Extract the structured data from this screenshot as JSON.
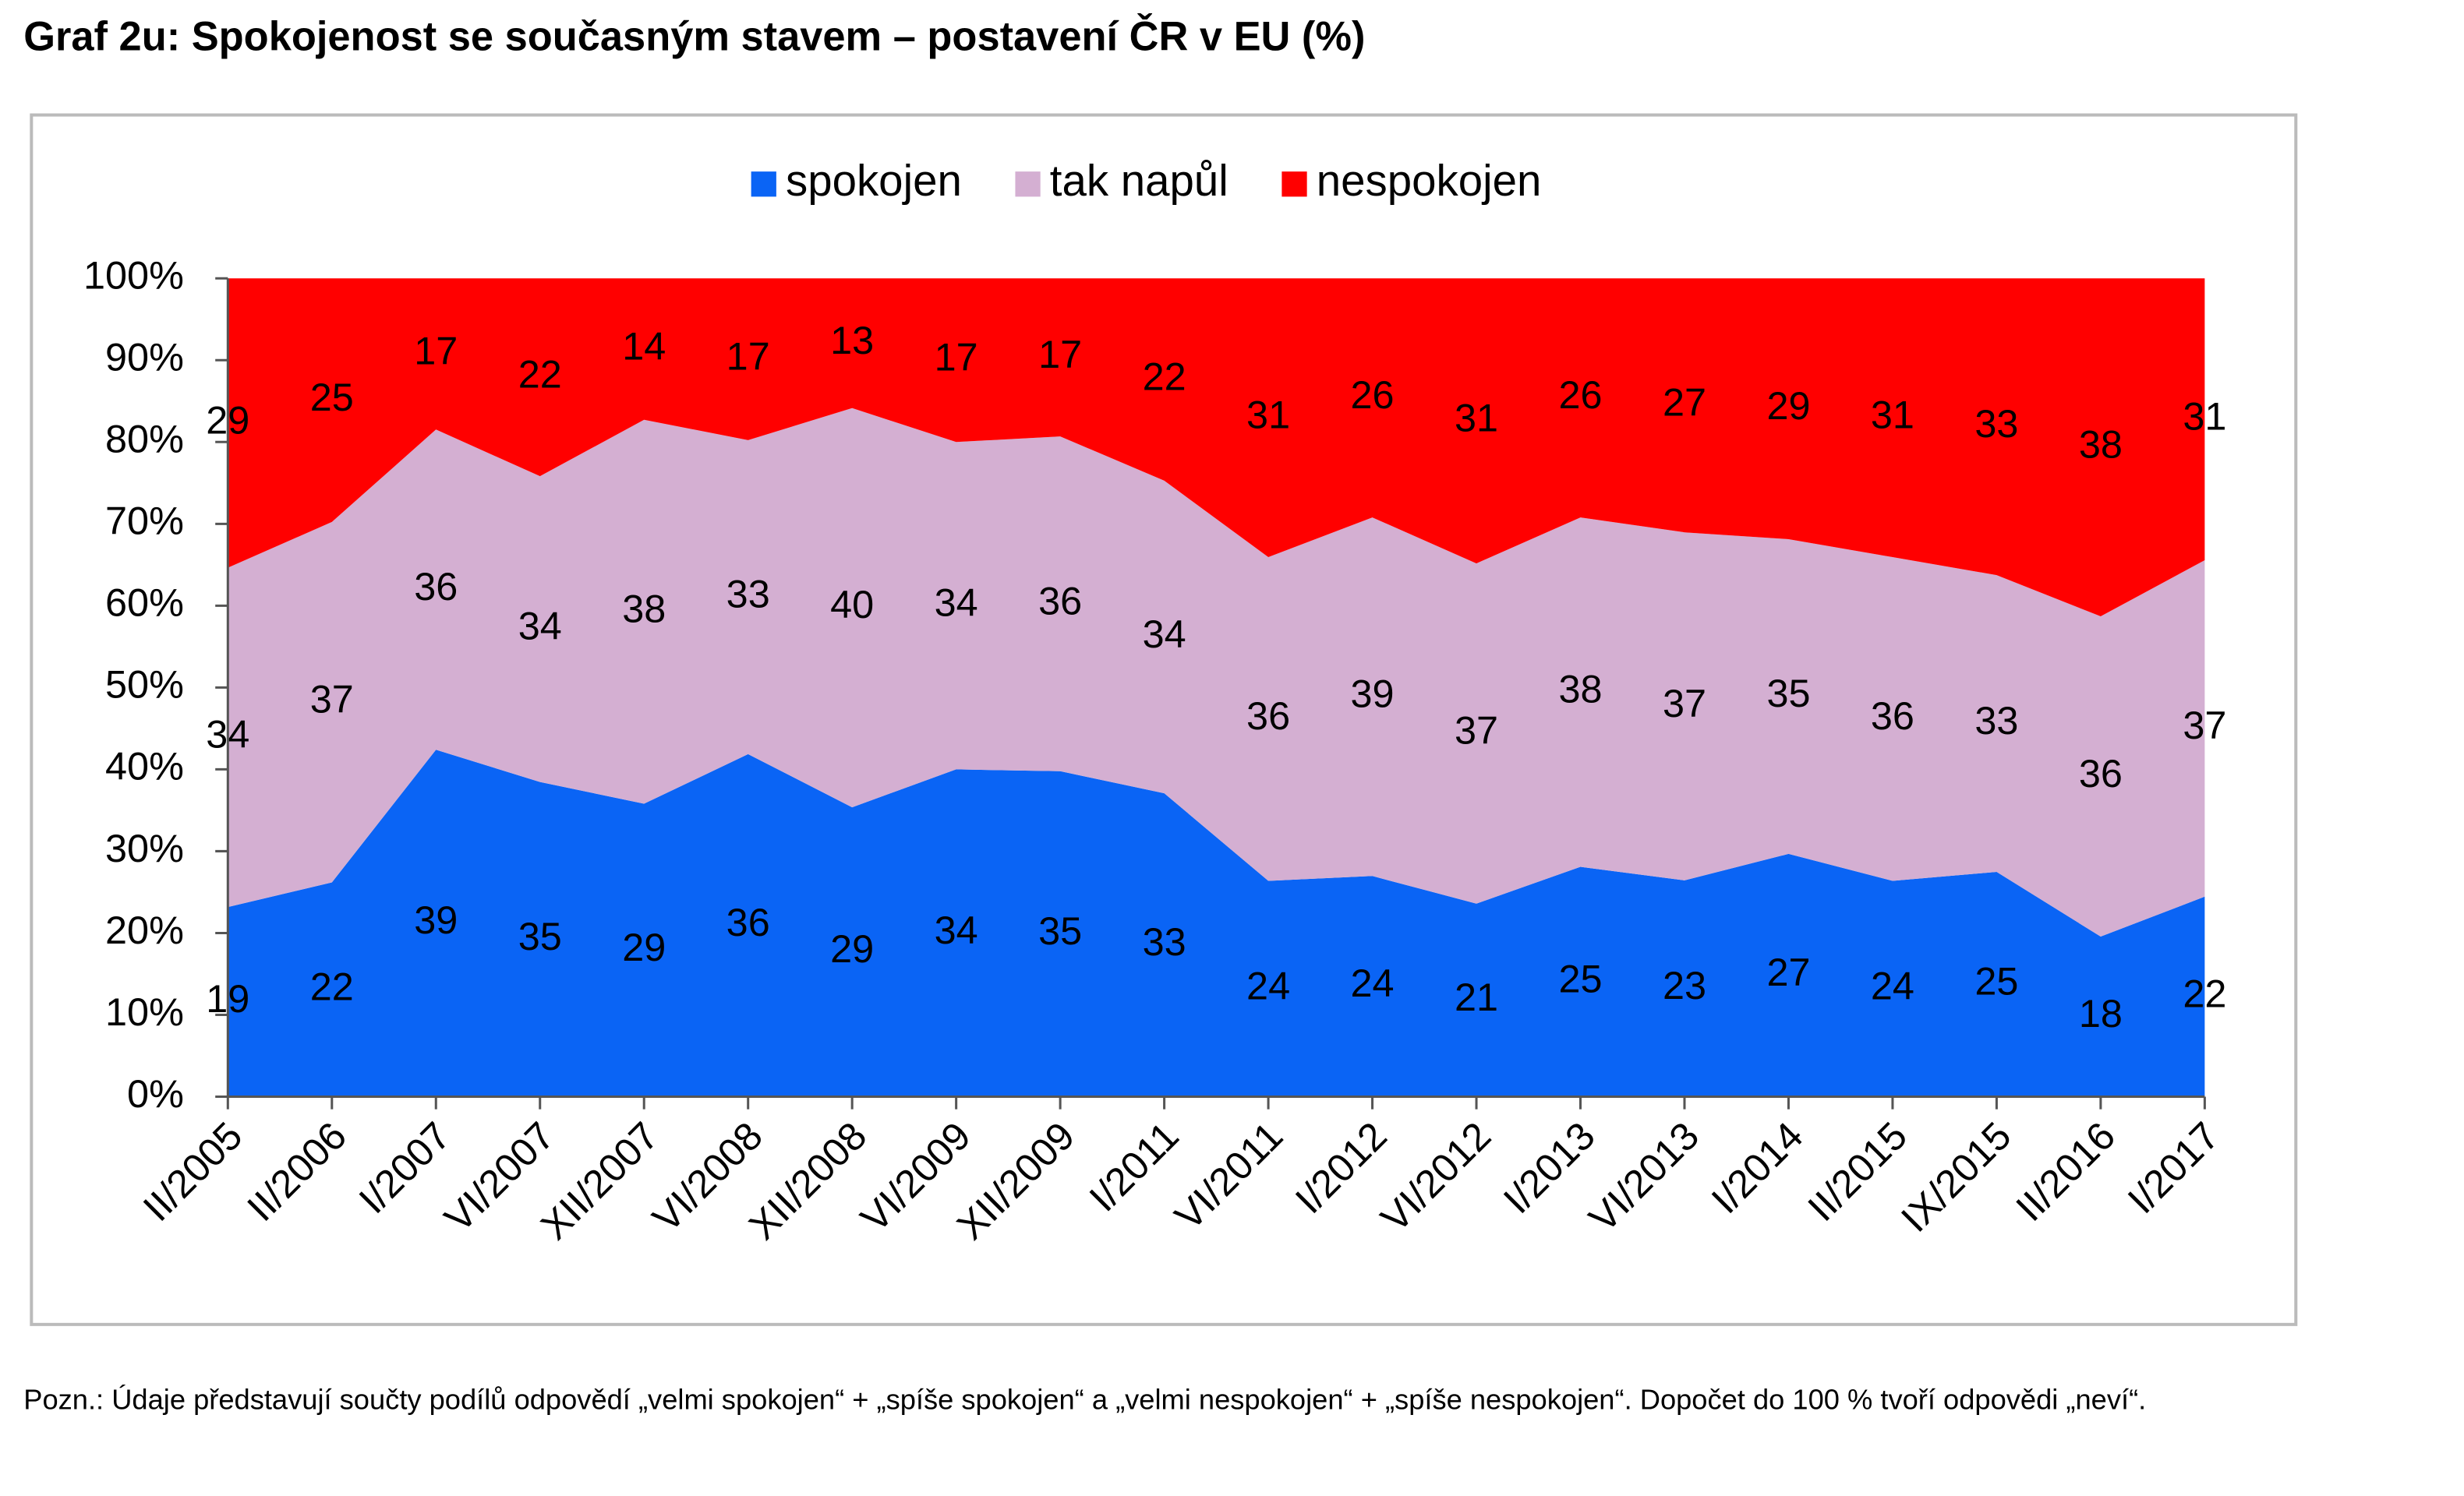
{
  "chart_data": {
    "type": "stacked_area_100",
    "title": "Graf 2u: Spokojenost se současným stavem – postavení ČR v EU (%)",
    "categories": [
      "II/2005",
      "II/2006",
      "I/2007",
      "VI/2007",
      "XII/2007",
      "VI/2008",
      "XII/2008",
      "VI/2009",
      "XII/2009",
      "I/2011",
      "VI/2011",
      "I/2012",
      "VI/2012",
      "I/2013",
      "VI/2013",
      "I/2014",
      "II/2015",
      "IX/2015",
      "II/2016",
      "I/2017"
    ],
    "series": [
      {
        "name": "spokojen",
        "color": "#0a64f5",
        "values": [
          19,
          22,
          39,
          35,
          29,
          36,
          29,
          34,
          35,
          33,
          24,
          24,
          21,
          25,
          23,
          27,
          24,
          25,
          18,
          22
        ]
      },
      {
        "name": "tak napůl",
        "color": "#d4afd2",
        "values": [
          34,
          37,
          36,
          34,
          38,
          33,
          40,
          34,
          36,
          34,
          36,
          39,
          37,
          38,
          37,
          35,
          36,
          33,
          36,
          37
        ]
      },
      {
        "name": "nespokojen",
        "color": "#ff0000",
        "values": [
          29,
          25,
          17,
          22,
          14,
          17,
          13,
          17,
          17,
          22,
          31,
          26,
          31,
          26,
          27,
          29,
          31,
          33,
          38,
          31
        ]
      }
    ],
    "ylim": [
      0,
      100
    ],
    "yticks": [
      {
        "value": 0,
        "label": "0%"
      },
      {
        "value": 10,
        "label": "10%"
      },
      {
        "value": 20,
        "label": "20%"
      },
      {
        "value": 30,
        "label": "30%"
      },
      {
        "value": 40,
        "label": "40%"
      },
      {
        "value": 50,
        "label": "50%"
      },
      {
        "value": 60,
        "label": "60%"
      },
      {
        "value": 70,
        "label": "70%"
      },
      {
        "value": 80,
        "label": "80%"
      },
      {
        "value": 90,
        "label": "90%"
      },
      {
        "value": 100,
        "label": "100%"
      }
    ],
    "legend": "top",
    "note": "Pozn.: Údaje představují součty podílů odpovědí „velmi spokojen“ + „spíše spokojen“ a „velmi nespokojen“ + „spíše nespokojen“. Dopočet do 100 % tvoří odpovědi „neví“."
  }
}
